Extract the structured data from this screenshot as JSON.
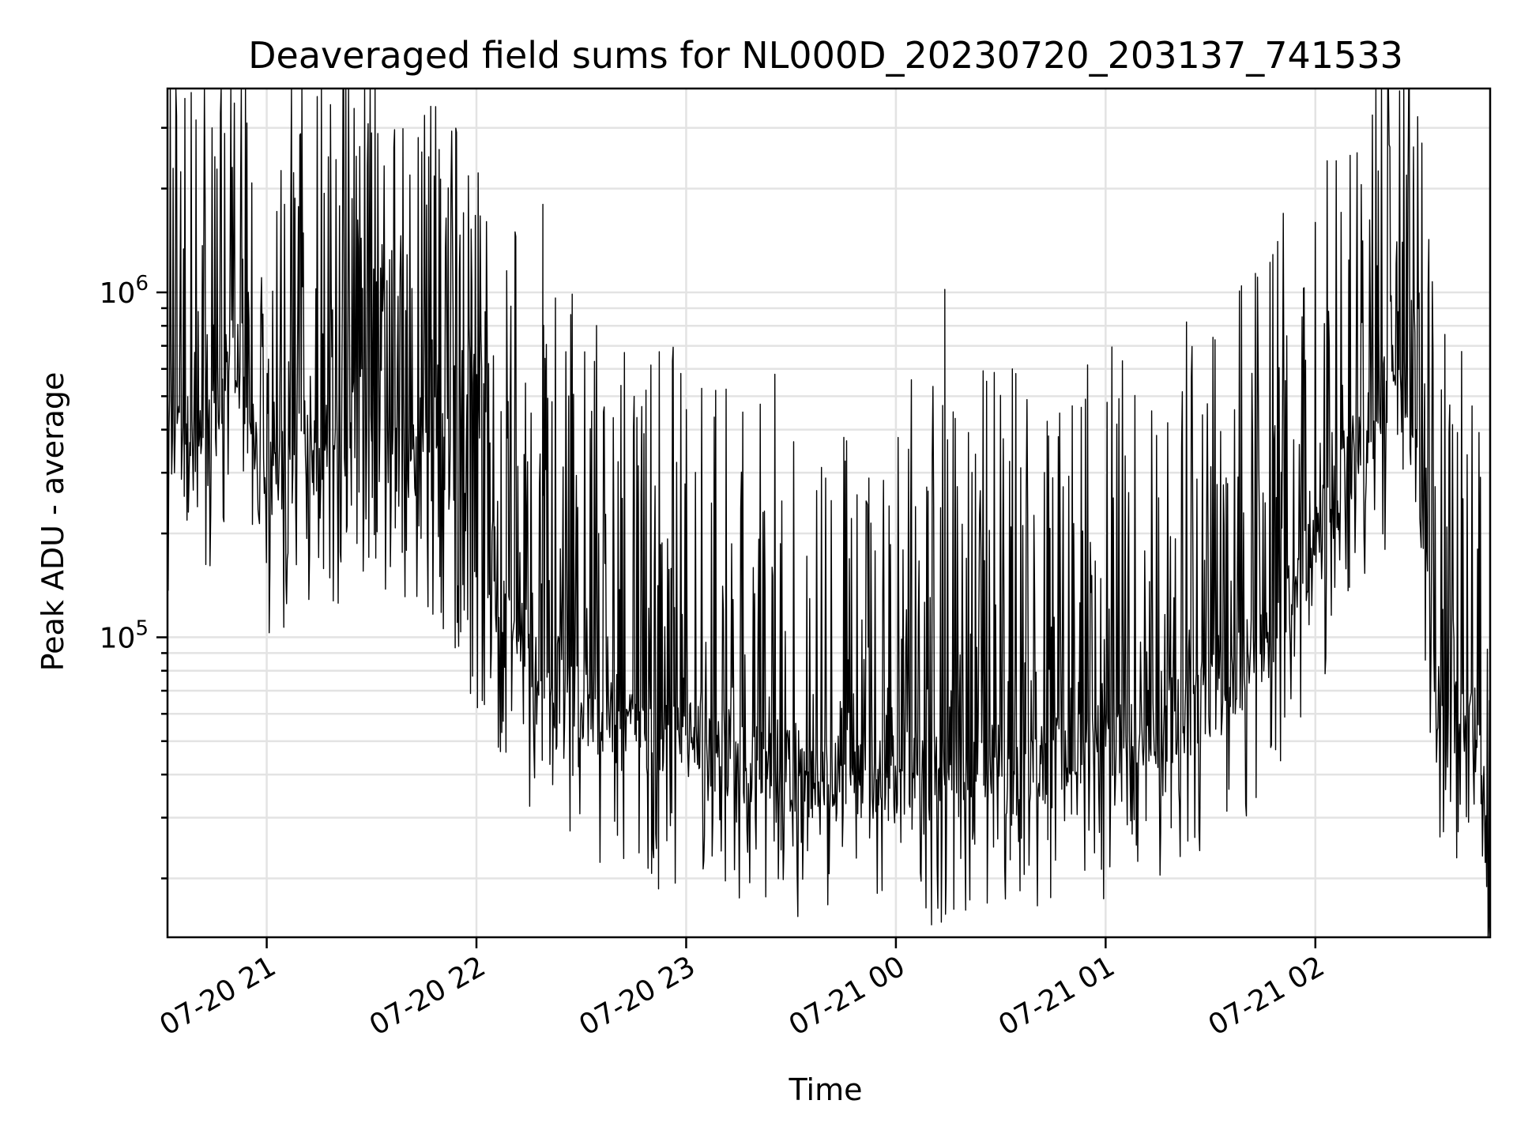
{
  "chart_data": {
    "type": "line",
    "title": "Deaveraged field sums for NL000D_20230720_203137_741533",
    "xlabel": "Time",
    "ylabel": "Peak ADU - average",
    "x_scale": "time",
    "y_scale": "log",
    "xlim": [
      "2023-07-20 20:31:37",
      "2023-07-21 02:50:00"
    ],
    "ylim": [
      13500,
      3900000
    ],
    "grid": true,
    "legend": "none",
    "x_ticks": [
      {
        "time": "2023-07-20 21:00",
        "label": "07-20 21"
      },
      {
        "time": "2023-07-20 22:00",
        "label": "07-20 22"
      },
      {
        "time": "2023-07-20 23:00",
        "label": "07-20 23"
      },
      {
        "time": "2023-07-21 00:00",
        "label": "07-21 00"
      },
      {
        "time": "2023-07-21 01:00",
        "label": "07-21 01"
      },
      {
        "time": "2023-07-21 02:00",
        "label": "07-21 02"
      }
    ],
    "y_ticks": [
      {
        "value": 100000,
        "base": "10",
        "exp": "5"
      },
      {
        "value": 1000000,
        "base": "10",
        "exp": "6"
      }
    ],
    "series": [
      {
        "color": "#000000",
        "baseline": [
          {
            "time": "2023-07-20 20:31:37",
            "value": 380000
          },
          {
            "time": "2023-07-20 20:45:00",
            "value": 420000
          },
          {
            "time": "2023-07-20 20:50:00",
            "value": 800000
          },
          {
            "time": "2023-07-20 20:58:00",
            "value": 280000
          },
          {
            "time": "2023-07-20 21:15:00",
            "value": 320000
          },
          {
            "time": "2023-07-20 21:30:00",
            "value": 400000
          },
          {
            "time": "2023-07-20 21:50:00",
            "value": 280000
          },
          {
            "time": "2023-07-20 22:15:00",
            "value": 90000
          },
          {
            "time": "2023-07-20 22:40:00",
            "value": 55000
          },
          {
            "time": "2023-07-20 23:15:00",
            "value": 45000
          },
          {
            "time": "2023-07-20 23:45:00",
            "value": 38000
          },
          {
            "time": "2023-07-21 00:15:00",
            "value": 42000
          },
          {
            "time": "2023-07-21 00:45:00",
            "value": 44000
          },
          {
            "time": "2023-07-21 01:15:00",
            "value": 55000
          },
          {
            "time": "2023-07-21 01:40:00",
            "value": 80000
          },
          {
            "time": "2023-07-21 02:00:00",
            "value": 190000
          },
          {
            "time": "2023-07-21 02:15:00",
            "value": 380000
          },
          {
            "time": "2023-07-21 02:25:00",
            "value": 650000
          },
          {
            "time": "2023-07-21 02:30:00",
            "value": 250000
          },
          {
            "time": "2023-07-21 02:35:00",
            "value": 65000
          },
          {
            "time": "2023-07-21 02:47:00",
            "value": 55000
          },
          {
            "time": "2023-07-21 02:50:00",
            "value": 16000
          }
        ],
        "notable_peaks": [
          {
            "time": "2023-07-20 21:30:00",
            "value": 2900000
          },
          {
            "time": "2023-07-20 22:19:00",
            "value": 1800000
          },
          {
            "time": "2023-07-21 00:14:00",
            "value": 1020000
          },
          {
            "time": "2023-07-21 02:18:00",
            "value": 2250000
          },
          {
            "time": "2023-07-21 02:28:00",
            "value": 1850000
          }
        ]
      }
    ]
  }
}
